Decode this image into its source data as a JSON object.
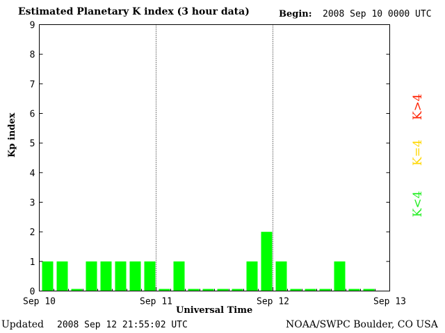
{
  "header": {
    "title": "Estimated Planetary K index (3 hour data)",
    "begin_label": "Begin:",
    "begin_value": "2008 Sep 10 0000 UTC"
  },
  "footer": {
    "updated_label": "Updated",
    "updated_value": "2008 Sep 12 21:55:02 UTC",
    "credit": "NOAA/SWPC Boulder, CO USA"
  },
  "legend": {
    "high": {
      "label": "K>4",
      "color": "#ff2000"
    },
    "mid": {
      "label": "K=4",
      "color": "#ffd700"
    },
    "low": {
      "label": "K<4",
      "color": "#22ee22"
    }
  },
  "chart_data": {
    "type": "bar",
    "title": "Estimated Planetary K index (3 hour data)",
    "xlabel": "Universal Time",
    "ylabel": "Kp index",
    "ylim": [
      0,
      9
    ],
    "yticks": [
      "0",
      "1",
      "2",
      "3",
      "4",
      "5",
      "6",
      "7",
      "8",
      "9"
    ],
    "xticks": [
      "Sep 10",
      "Sep 11",
      "Sep 12",
      "Sep 13"
    ],
    "day_separators": [
      "Sep 11",
      "Sep 12"
    ],
    "grid": false,
    "bar_color": "#00ff00",
    "values": [
      1,
      1,
      0,
      1,
      1,
      1,
      1,
      1,
      0,
      1,
      0,
      0,
      0,
      0,
      1,
      2,
      1,
      0,
      0,
      0,
      1,
      0,
      0
    ]
  }
}
